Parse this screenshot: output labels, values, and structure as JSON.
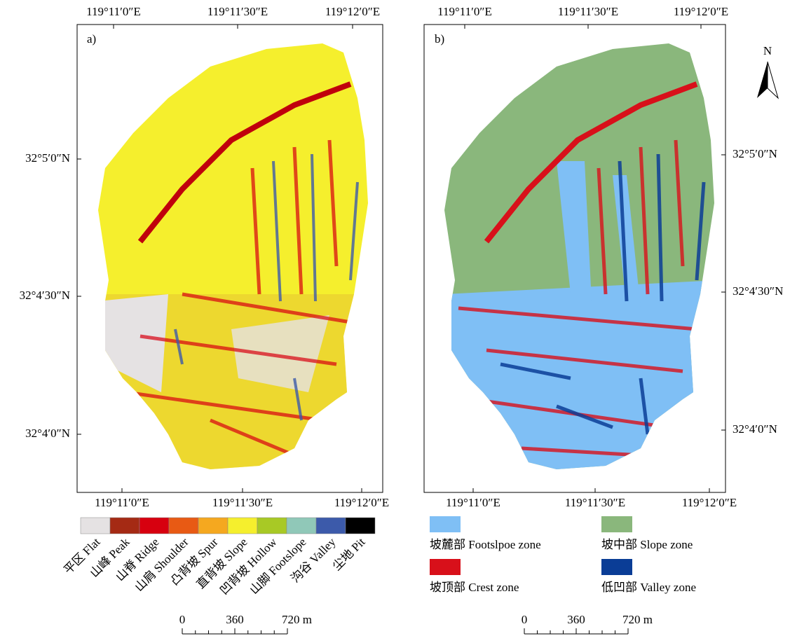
{
  "panels": [
    {
      "label": "a)",
      "top_ticks": [
        "119°11′0″E",
        "119°11′30″E",
        "119°12′0″E"
      ],
      "bottom_ticks": [
        "119°11′0″E",
        "119°11′30″E",
        "119°12′0″E"
      ],
      "side_ticks": [
        "32°5′0″N",
        "32°4′30″N",
        "32°4′0″N"
      ],
      "legend": [
        {
          "name": "平区 Flat",
          "color": "#e5e2e3"
        },
        {
          "name": "山峰 Peak",
          "color": "#a52a14"
        },
        {
          "name": "山脊 Ridge",
          "color": "#d7000f"
        },
        {
          "name": "山肩 Shoulder",
          "color": "#e85a14"
        },
        {
          "name": "凸背坡 Spur",
          "color": "#f5a81f"
        },
        {
          "name": "直背坡 Slope",
          "color": "#f5ef2d"
        },
        {
          "name": "凹背坡 Hollow",
          "color": "#a8c925"
        },
        {
          "name": "山脚 Footslope",
          "color": "#90c8b8"
        },
        {
          "name": "沟谷 Valley",
          "color": "#3c5aaa"
        },
        {
          "name": "尘地 Pit",
          "color": "#000000"
        }
      ],
      "scale_labels": [
        "0",
        "360",
        "720 m"
      ]
    },
    {
      "label": "b)",
      "top_ticks": [
        "119°11′0″E",
        "119°11′30″E",
        "119°12′0″E"
      ],
      "bottom_ticks": [
        "119°11′0″E",
        "119°11′30″E",
        "119°12′0″E"
      ],
      "side_ticks": [
        "32°5′0″N",
        "32°4′30″N",
        "32°4′0″N"
      ],
      "legend": [
        {
          "name": "坡麓部 Footslpoe zone",
          "color": "#7fbff5"
        },
        {
          "name": "坡中部 Slope zone",
          "color": "#8ab77c"
        },
        {
          "name": "坡顶部 Crest zone",
          "color": "#d8101a"
        },
        {
          "name": "低凹部 Valley zone",
          "color": "#0a3d96"
        }
      ],
      "scale_labels": [
        "0",
        "360",
        "720 m"
      ]
    }
  ],
  "north": "N"
}
